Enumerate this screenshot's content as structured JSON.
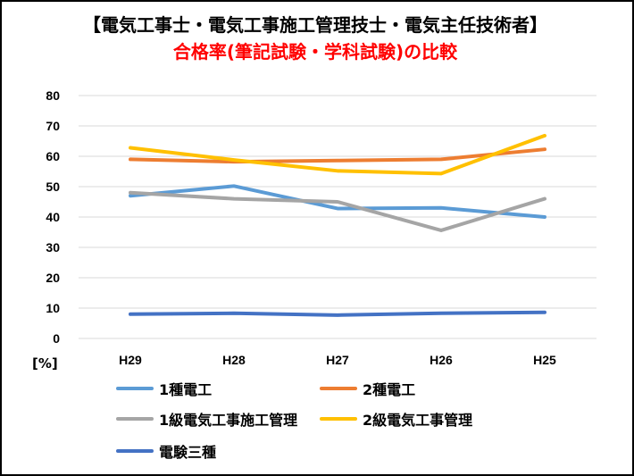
{
  "chart_data": {
    "type": "line",
    "title": "【電気工事士・電気工事施工管理技士・電気主任技術者】",
    "subtitle": "合格率(筆記試験・学科試験)の比較",
    "categories": [
      "H29",
      "H28",
      "H27",
      "H26",
      "H25"
    ],
    "ylabel": "[%]",
    "ylim": [
      0,
      80
    ],
    "yticks": [
      0,
      10,
      20,
      30,
      40,
      50,
      60,
      70,
      80
    ],
    "grid": true,
    "legend": "bottom",
    "series": [
      {
        "name": "1種電工",
        "color": "#5B9BD5",
        "values": [
          47.0,
          50.2,
          42.8,
          43.0,
          40.0
        ]
      },
      {
        "name": "2種電工",
        "color": "#ED7D31",
        "values": [
          59.0,
          58.2,
          58.6,
          59.0,
          62.3
        ]
      },
      {
        "name": "1級電気工事施工管理",
        "color": "#A5A5A5",
        "values": [
          48.0,
          46.0,
          45.0,
          35.6,
          46.0
        ]
      },
      {
        "name": "2級電気工事管理",
        "color": "#FFC000",
        "values": [
          62.8,
          58.8,
          55.2,
          54.3,
          66.8
        ]
      },
      {
        "name": "電験三種",
        "color": "#4472C4",
        "values": [
          8.0,
          8.3,
          7.7,
          8.3,
          8.6
        ]
      }
    ]
  }
}
